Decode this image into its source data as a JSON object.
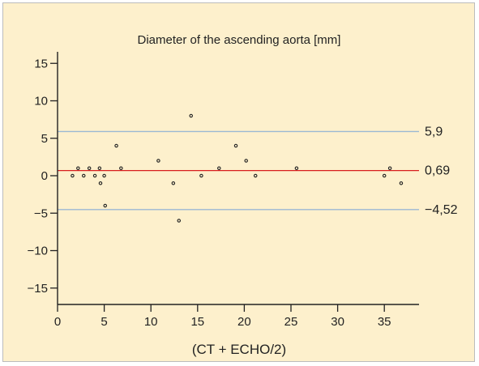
{
  "chart_data": {
    "type": "scatter",
    "title": "Diameter of the ascending aorta [mm]",
    "xlabel": "(CT + ECHO/2)",
    "ylabel": "",
    "xlim": [
      0,
      39
    ],
    "ylim": [
      -17,
      17
    ],
    "x_ticks": [
      0,
      5,
      10,
      15,
      20,
      25,
      30,
      35
    ],
    "y_ticks": [
      15,
      10,
      5,
      0,
      -5,
      -10,
      -15
    ],
    "x_tick_labels": [
      "0",
      "5",
      "10",
      "15",
      "20",
      "25",
      "30",
      "35"
    ],
    "y_tick_labels": [
      "15",
      "10",
      "5",
      "0",
      "−5",
      "−10",
      "−15"
    ],
    "grid": false,
    "points": [
      {
        "x": 1.6,
        "y": 0
      },
      {
        "x": 2.2,
        "y": 1
      },
      {
        "x": 2.8,
        "y": 0
      },
      {
        "x": 3.4,
        "y": 1
      },
      {
        "x": 4.0,
        "y": 0
      },
      {
        "x": 4.5,
        "y": 1
      },
      {
        "x": 4.6,
        "y": -1
      },
      {
        "x": 5.0,
        "y": 0
      },
      {
        "x": 5.1,
        "y": -4
      },
      {
        "x": 6.3,
        "y": 4
      },
      {
        "x": 6.8,
        "y": 1
      },
      {
        "x": 10.8,
        "y": 2
      },
      {
        "x": 12.4,
        "y": -1
      },
      {
        "x": 13.0,
        "y": -6
      },
      {
        "x": 14.3,
        "y": 8
      },
      {
        "x": 15.4,
        "y": 0
      },
      {
        "x": 17.3,
        "y": 1
      },
      {
        "x": 19.1,
        "y": 4
      },
      {
        "x": 20.2,
        "y": 2
      },
      {
        "x": 21.2,
        "y": 0
      },
      {
        "x": 25.6,
        "y": 1
      },
      {
        "x": 35.0,
        "y": 0
      },
      {
        "x": 35.6,
        "y": 1
      },
      {
        "x": 36.8,
        "y": -1
      }
    ],
    "reference_lines": [
      {
        "y": 5.9,
        "label": "5,9",
        "color": "#9bb8d3"
      },
      {
        "y": 0.69,
        "label": "0,69",
        "color": "#d81e1e"
      },
      {
        "y": -4.52,
        "label": "−4,52",
        "color": "#9bb8d3"
      }
    ],
    "colors": {
      "background": "#fdf0cc",
      "axis": "#222222",
      "point_stroke": "#222222"
    }
  }
}
